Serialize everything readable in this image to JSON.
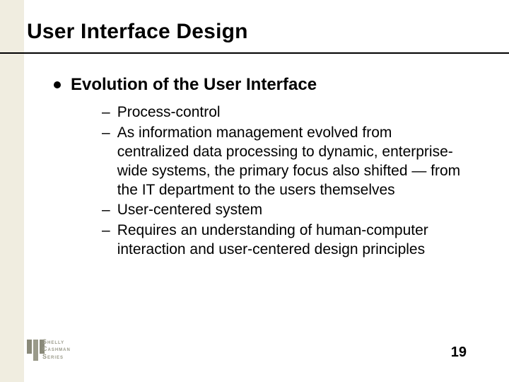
{
  "background_color": "#ffffff",
  "left_band_color": "#f0ede0",
  "rule_color": "#000000",
  "text_color": "#000000",
  "title": {
    "text": "User Interface Design",
    "fontsize": 30,
    "weight": "bold"
  },
  "bullet": {
    "text": "Evolution of the User Interface",
    "fontsize": 24,
    "weight": "bold",
    "marker": "disc"
  },
  "sub_items": [
    {
      "text": "Process-control"
    },
    {
      "text": "As information management evolved from centralized data processing to dynamic, enterprise-wide systems, the primary focus also shifted — from the IT department to the users themselves"
    },
    {
      "text": "User-centered system"
    },
    {
      "text": "Requires an understanding of human-computer interaction and user-centered design principles"
    }
  ],
  "sub_marker": "–",
  "sub_fontsize": 21,
  "page_number": "19",
  "logo": {
    "line1": "Shelly",
    "line2": "Cashman",
    "line3": "Series",
    "color": "#9a9a8a"
  }
}
